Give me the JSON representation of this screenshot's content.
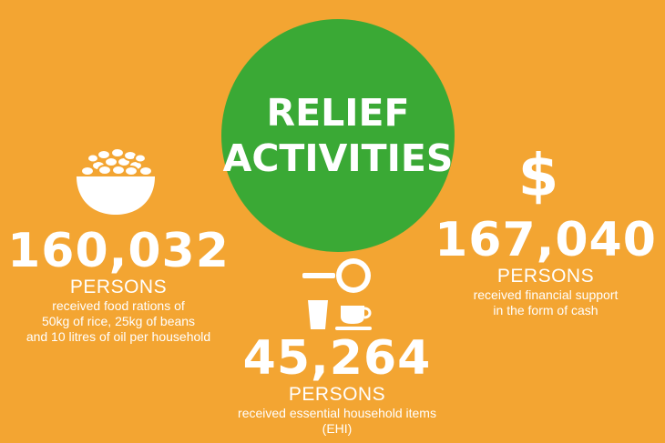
{
  "title": "RELIEF\nACTIVITIES",
  "stats": {
    "food": {
      "number": "160,032",
      "unit": "PERSONS",
      "description": "received food rations of\n50kg of rice, 25kg of beans\nand 10 litres of oil per household",
      "icon": "bowl-of-beans-icon"
    },
    "cash": {
      "number": "167,040",
      "unit": "PERSONS",
      "description": "received financial support\nin the form of cash",
      "icon": "dollar-icon",
      "symbol": "$"
    },
    "ehi": {
      "number": "45,264",
      "unit": "PERSONS",
      "description": "received essential household items\n(EHI)",
      "icon": "household-items-icon"
    }
  },
  "colors": {
    "background": "#f3a532",
    "circle": "#3aa935",
    "text": "#ffffff"
  }
}
